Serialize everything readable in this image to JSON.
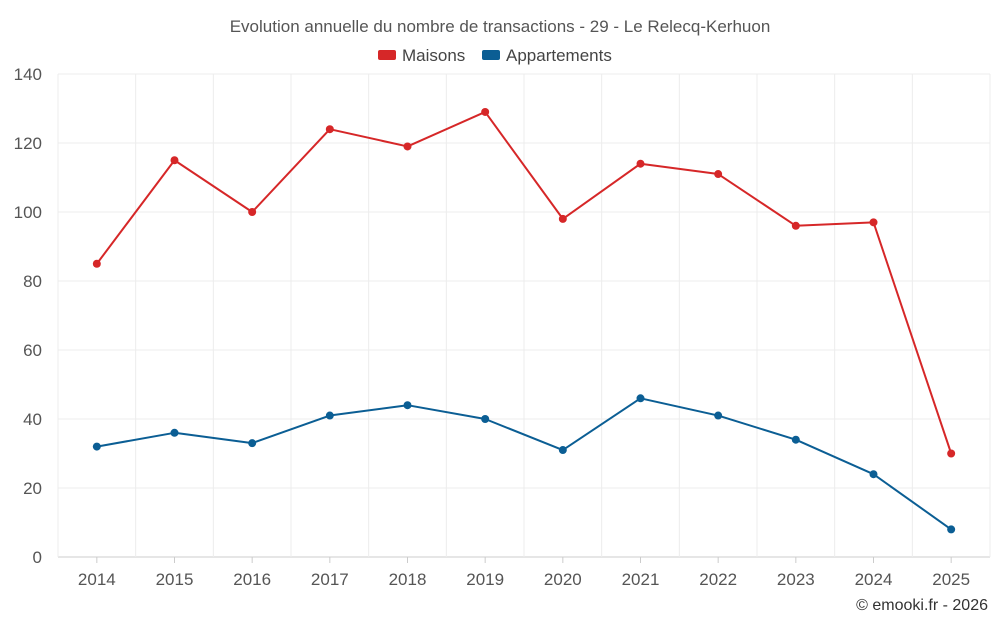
{
  "chart_data": {
    "type": "line",
    "title": "Evolution annuelle du nombre de transactions - 29 - Le Relecq-Kerhuon",
    "categories": [
      "2014",
      "2015",
      "2016",
      "2017",
      "2018",
      "2019",
      "2020",
      "2021",
      "2022",
      "2023",
      "2024",
      "2025"
    ],
    "series": [
      {
        "name": "Maisons",
        "color": "#d62728",
        "values": [
          85,
          115,
          100,
          124,
          119,
          129,
          98,
          114,
          111,
          96,
          97,
          30
        ]
      },
      {
        "name": "Appartements",
        "color": "#0b5e94",
        "values": [
          32,
          36,
          33,
          41,
          44,
          40,
          31,
          46,
          41,
          34,
          24,
          8
        ]
      }
    ],
    "ylim": [
      0,
      140
    ],
    "yticks": [
      0,
      20,
      40,
      60,
      80,
      100,
      120,
      140
    ],
    "grid": true,
    "legend": "top-center"
  },
  "credit": "© emooki.fr - 2026"
}
